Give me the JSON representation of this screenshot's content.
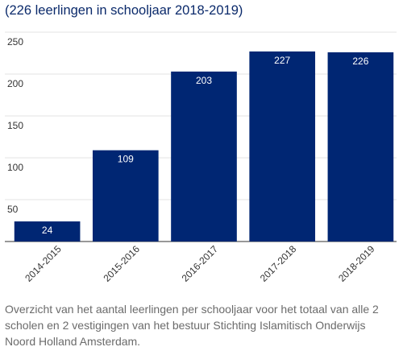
{
  "chart_data": {
    "type": "bar",
    "title": "(226 leerlingen in schooljaar 2018-2019)",
    "categories": [
      "2014-2015",
      "2015-2016",
      "2016-2017",
      "2017-2018",
      "2018-2019"
    ],
    "values": [
      24,
      109,
      203,
      227,
      226
    ],
    "data_labels": [
      "24",
      "109",
      "203",
      "227",
      "226"
    ],
    "ylim": [
      0,
      250
    ],
    "yticks": [
      50,
      100,
      150,
      200,
      250
    ],
    "ytick_labels": [
      "50",
      "100",
      "150",
      "200",
      "250"
    ],
    "xlabel": "",
    "ylabel": "",
    "grid": true,
    "bar_color": "#002673",
    "label_color": "#ffffff",
    "grid_color": "#e3e3e3"
  },
  "caption": "Overzicht van het aantal leerlingen per schooljaar voor het totaal van alle 2 scholen en 2 vestigingen van het bestuur Stichting Islamitisch Onderwijs Noord Holland Amsterdam."
}
